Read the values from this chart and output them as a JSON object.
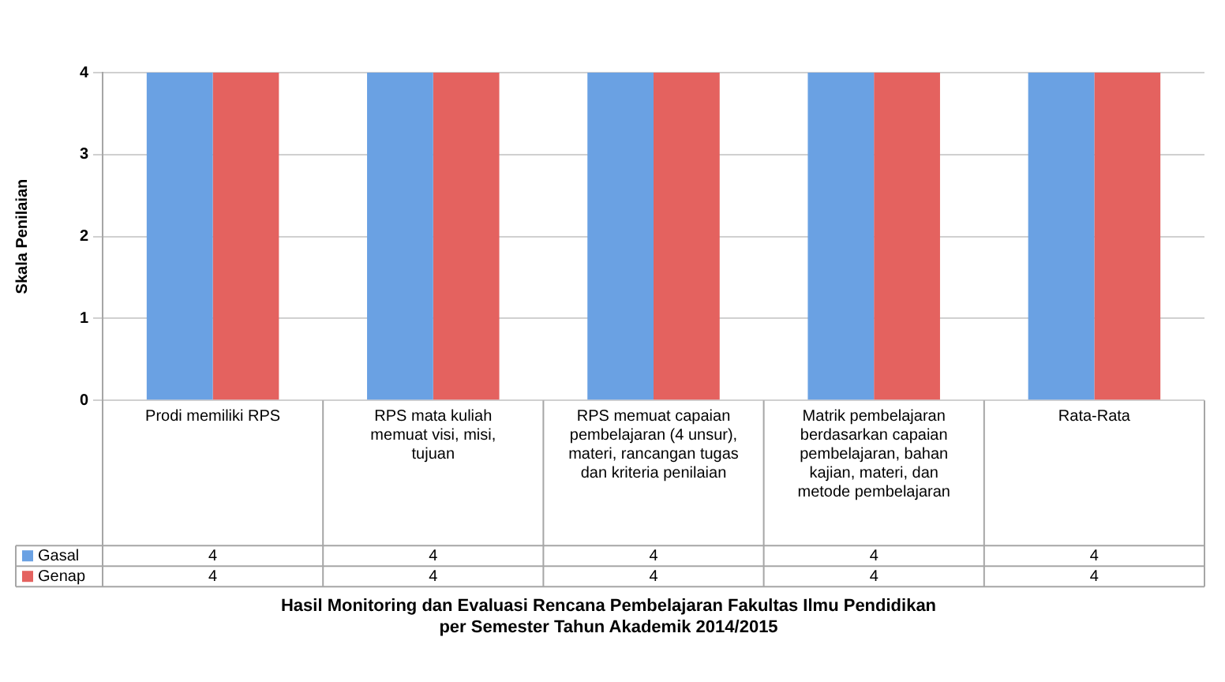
{
  "chart_data": {
    "type": "bar",
    "title": "Hasil Monitoring dan Evaluasi Rencana Pembelajaran Fakultas Ilmu Pendidikan per Semester Tahun Akademik 2014/2015",
    "ylabel": "Skala Penilaian",
    "categories": [
      "Prodi memiliki RPS",
      "RPS mata kuliah memuat visi, misi, tujuan",
      "RPS memuat capaian pembelajaran (4 unsur), materi, rancangan tugas dan kriteria penilaian",
      "Matrik pembelajaran berdasarkan capaian pembelajaran, bahan kajian, materi, dan metode pembelajaran",
      "Rata-Rata"
    ],
    "series": [
      {
        "name": "Gasal",
        "color": "#6aa1e3",
        "values": [
          4,
          4,
          4,
          4,
          4
        ]
      },
      {
        "name": "Genap",
        "color": "#e4625f",
        "values": [
          4,
          4,
          4,
          4,
          4
        ]
      }
    ],
    "ylim": [
      0,
      4
    ],
    "yticks": [
      0,
      1,
      2,
      3,
      4
    ],
    "grid": "y",
    "legend": "bottom left",
    "data_labels": true
  }
}
